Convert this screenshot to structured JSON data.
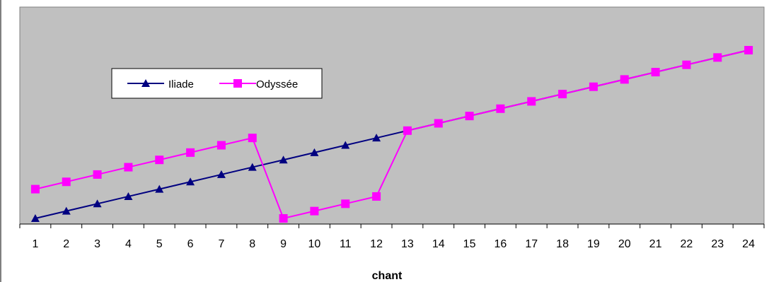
{
  "chart_data": {
    "type": "line",
    "xlabel": "chant",
    "ylabel": "",
    "x": [
      1,
      2,
      3,
      4,
      5,
      6,
      7,
      8,
      9,
      10,
      11,
      12,
      13,
      14,
      15,
      16,
      17,
      18,
      19,
      20,
      21,
      22,
      23,
      24
    ],
    "ylim": [
      0,
      24
    ],
    "grid": false,
    "legend_position": "top-left",
    "series": [
      {
        "name": "Iliade",
        "color": "#000080",
        "marker": "triangle",
        "values": [
          1,
          2,
          3,
          4,
          5,
          6,
          7,
          8,
          9,
          10,
          11,
          12,
          13,
          14,
          15,
          16,
          17,
          18,
          19,
          20,
          21,
          22,
          23,
          24
        ]
      },
      {
        "name": "Odyssée",
        "color": "#ff00ff",
        "marker": "square",
        "values": [
          5,
          6,
          7,
          8,
          9,
          10,
          11,
          12,
          1,
          2,
          3,
          4,
          13,
          14,
          15,
          16,
          17,
          18,
          19,
          20,
          21,
          22,
          23,
          24
        ]
      }
    ],
    "colors": {
      "plot_background": "#c0c0c0",
      "axis": "#000000"
    }
  }
}
